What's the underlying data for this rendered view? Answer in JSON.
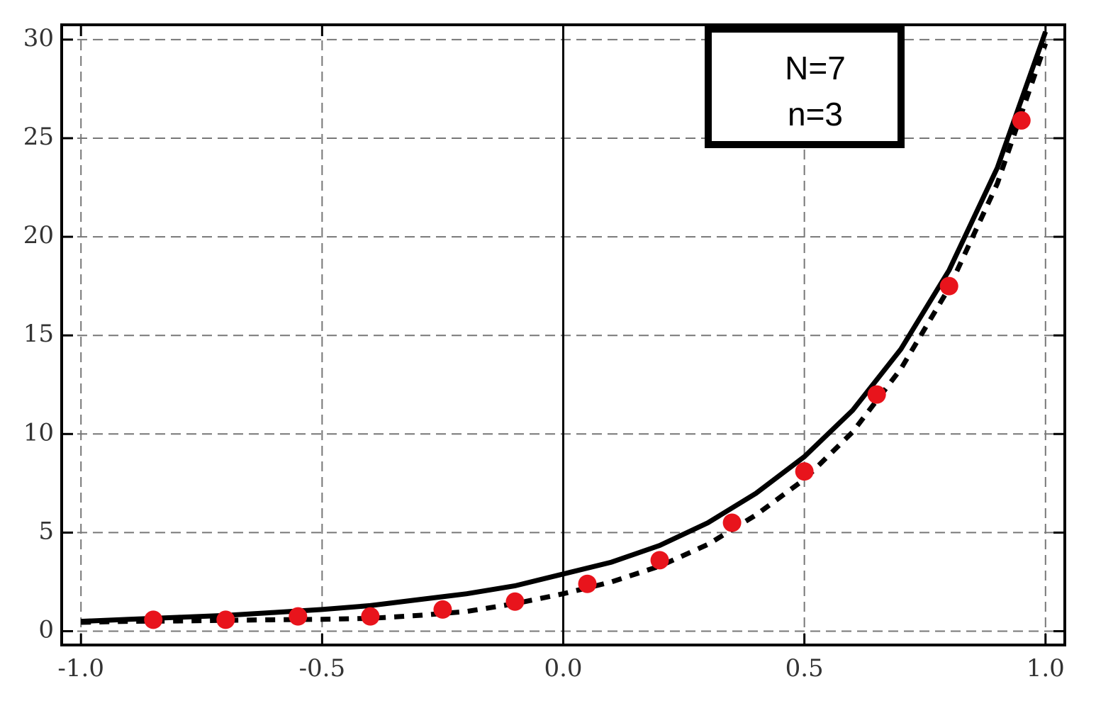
{
  "chart_data": {
    "type": "line",
    "annotations": [
      "N=7",
      "n=3"
    ],
    "xlim": [
      -1.04,
      1.04
    ],
    "ylim": [
      -0.7,
      30.75
    ],
    "xticks": [
      {
        "value": -1,
        "label": "-1.0"
      },
      {
        "value": -0.5,
        "label": "-0.5"
      },
      {
        "value": 0,
        "label": "0.0"
      },
      {
        "value": 0.5,
        "label": "0.5"
      },
      {
        "value": 1,
        "label": "1.0"
      }
    ],
    "yticks": [
      0,
      5,
      10,
      15,
      20,
      25,
      30
    ],
    "grid": true,
    "series": [
      {
        "mode": "solid",
        "color": "#000000",
        "x": [
          -1,
          -0.9,
          -0.8,
          -0.7,
          -0.6,
          -0.5,
          -0.4,
          -0.3,
          -0.2,
          -0.1,
          0,
          0.1,
          0.2,
          0.3,
          0.4,
          0.5,
          0.6,
          0.7,
          0.8,
          0.9,
          1.0
        ],
        "values": [
          0.5,
          0.6,
          0.7,
          0.8,
          0.95,
          1.1,
          1.3,
          1.6,
          1.9,
          2.3,
          2.9,
          3.5,
          4.35,
          5.5,
          7,
          8.85,
          11.2,
          14.3,
          18.3,
          23.5,
          30.4
        ]
      },
      {
        "mode": "dotted",
        "color": "#000000",
        "x": [
          -1,
          -0.9,
          -0.8,
          -0.7,
          -0.6,
          -0.5,
          -0.4,
          -0.3,
          -0.2,
          -0.1,
          0,
          0.1,
          0.2,
          0.3,
          0.4,
          0.5,
          0.6,
          0.7,
          0.8,
          0.9,
          1.0
        ],
        "values": [
          0.45,
          0.5,
          0.52,
          0.55,
          0.58,
          0.6,
          0.65,
          0.8,
          1.0,
          1.4,
          1.9,
          2.5,
          3.3,
          4.4,
          5.9,
          7.7,
          10.1,
          13.3,
          17.4,
          22.7,
          29.8
        ]
      },
      {
        "mode": "markers",
        "color": "#e8141c",
        "x": [
          -0.85,
          -0.7,
          -0.55,
          -0.4,
          -0.25,
          -0.1,
          0.05,
          0.2,
          0.35,
          0.5,
          0.65,
          0.8,
          0.95
        ],
        "values": [
          0.58,
          0.58,
          0.75,
          0.75,
          1.1,
          1.5,
          2.4,
          3.6,
          5.5,
          8.1,
          12,
          17.5,
          25.9
        ]
      }
    ]
  }
}
